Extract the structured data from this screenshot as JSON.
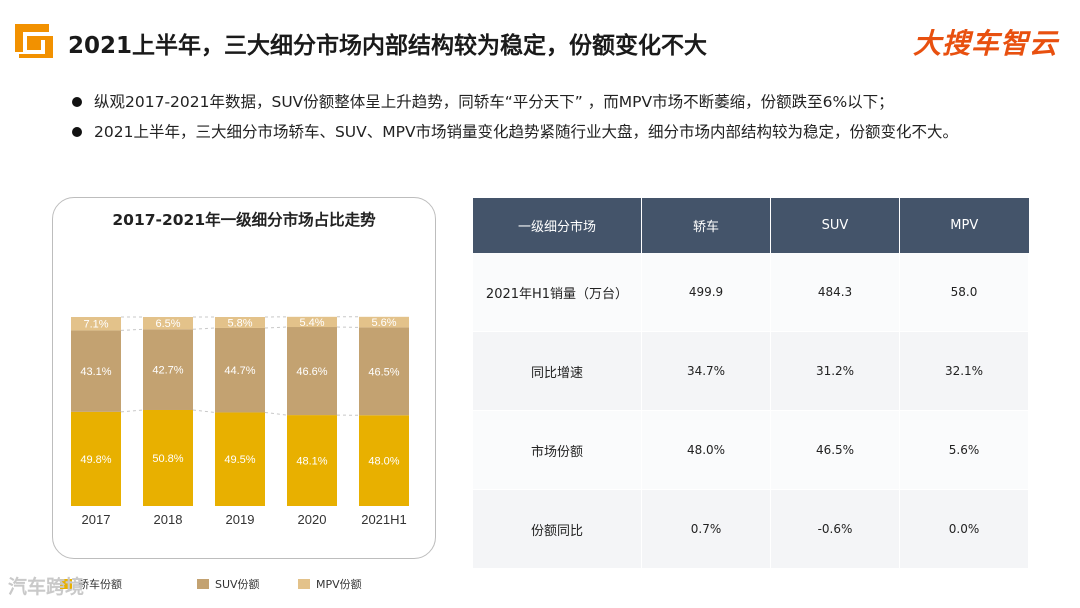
{
  "header": {
    "title": "2021上半年，三大细分市场内部结构较为稳定，份额变化不大",
    "brand": "大搜车智云"
  },
  "bullets": [
    "纵观2017-2021年数据，SUV份额整体呈上升趋势，同轿车“平分天下” ，而MPV市场不断萎缩，份额跌至6%以下；",
    "2021上半年，三大细分市场轿车、SUV、MPV市场销量变化趋势紧随行业大盘，细分市场内部结构较为稳定，份额变化不大。"
  ],
  "colors": {
    "sedan": "#e8b000",
    "suv": "#c3a271",
    "mpv": "#e3c28a",
    "table_header": "#44546a",
    "brand": "#e8500f"
  },
  "chart_data": {
    "type": "bar",
    "stacked": true,
    "title": "2017-2021年一级细分市场占比走势",
    "categories": [
      "2017",
      "2018",
      "2019",
      "2020",
      "2021H1"
    ],
    "series": [
      {
        "name": "轿车份额",
        "values": [
          49.8,
          50.8,
          49.5,
          48.1,
          48.0
        ]
      },
      {
        "name": "SUV份额",
        "values": [
          43.1,
          42.7,
          44.7,
          46.6,
          46.5
        ]
      },
      {
        "name": "MPV份额",
        "values": [
          7.1,
          6.5,
          5.8,
          5.4,
          5.6
        ]
      }
    ],
    "data_labels": [
      [
        "49.8%",
        "50.8%",
        "49.5%",
        "48.1%",
        "48.0%"
      ],
      [
        "43.1%",
        "42.7%",
        "44.7%",
        "46.6%",
        "46.5%"
      ],
      [
        "7.1%",
        "6.5%",
        "5.8%",
        "5.4%",
        "5.6%"
      ]
    ],
    "ylim": [
      0,
      100
    ],
    "legend": "bottom",
    "grid": false
  },
  "table": {
    "headers": [
      "一级细分市场",
      "轿车",
      "SUV",
      "MPV"
    ],
    "rows": [
      {
        "label": "2021年H1销量（万台）",
        "values": [
          "499.9",
          "484.3",
          "58.0"
        ]
      },
      {
        "label": "同比增速",
        "values": [
          "34.7%",
          "31.2%",
          "32.1%"
        ]
      },
      {
        "label": "市场份额",
        "values": [
          "48.0%",
          "46.5%",
          "5.6%"
        ]
      },
      {
        "label": "份额同比",
        "values": [
          "0.7%",
          "-0.6%",
          "0.0%"
        ]
      }
    ]
  },
  "watermark": "汽车跨境"
}
